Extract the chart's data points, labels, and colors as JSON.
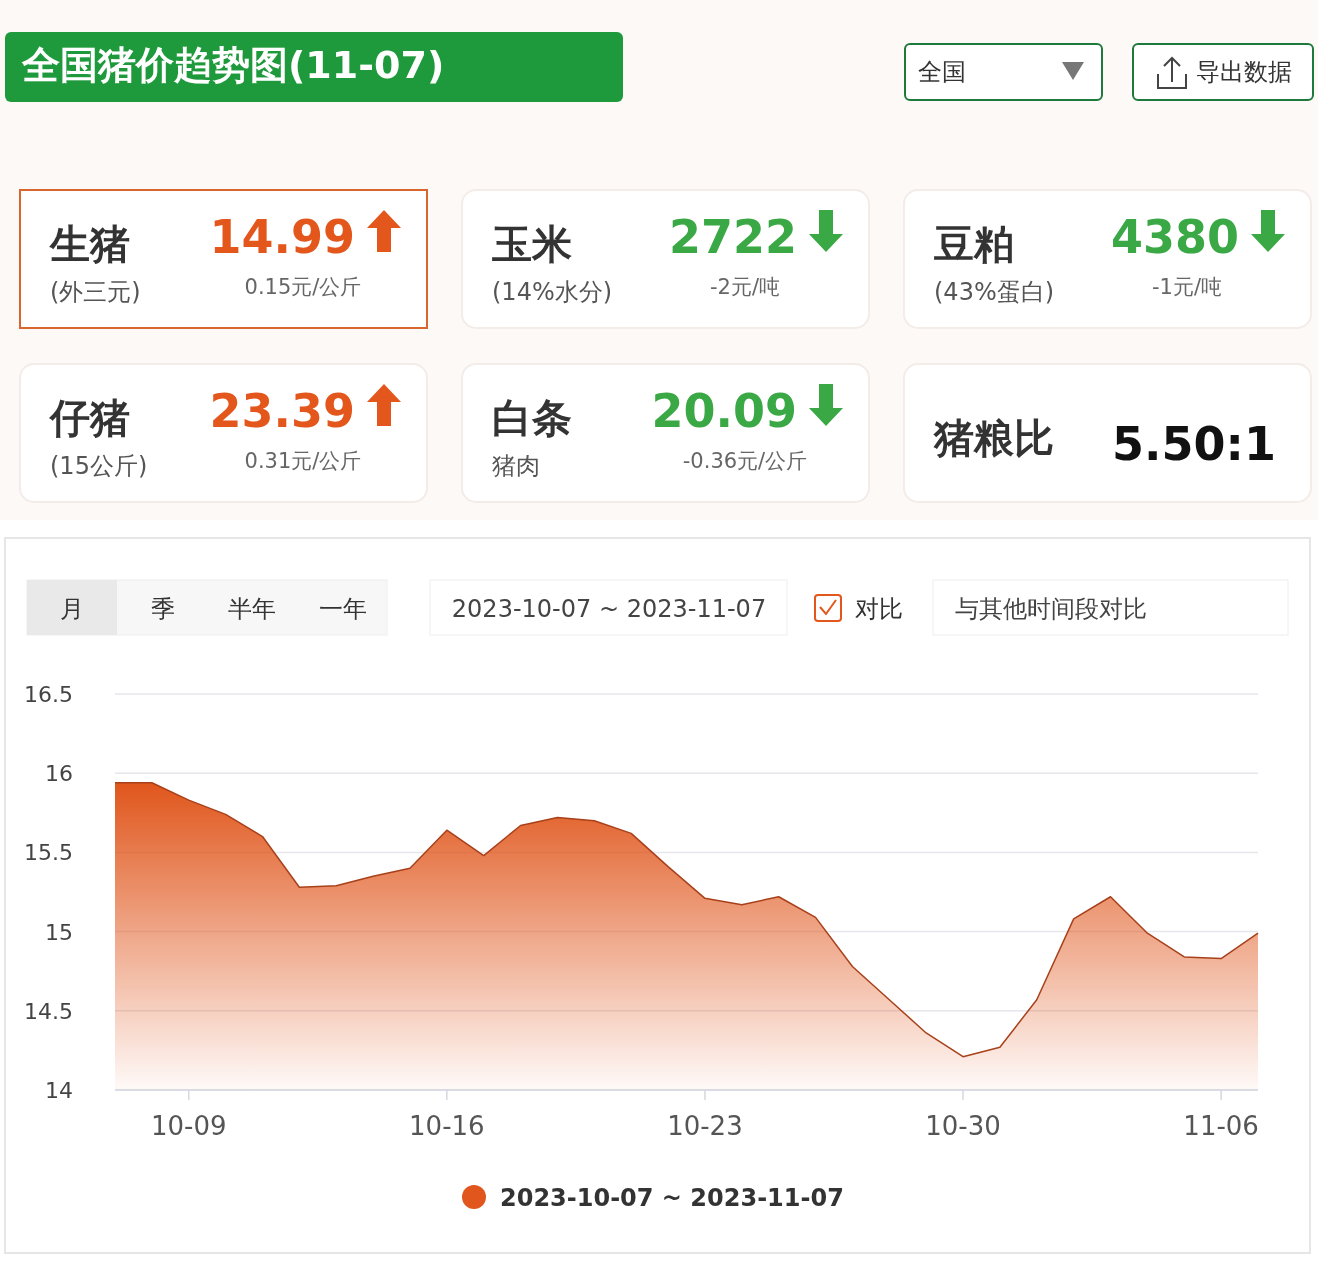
{
  "chart_data": [
    {
      "type": "other",
      "title": "全国猪价趋势图(11-07)",
      "annotations": [
        "全国",
        "导出数据",
        "生猪",
        "(外三元)",
        "14.99",
        "0.15元/公斤",
        "玉米",
        "(14%水分)",
        "2722",
        "-2元/吨",
        "豆粕",
        "(43%蛋白)",
        "4380",
        "-1元/吨",
        "仔猪",
        "(15公斤)",
        "23.39",
        "0.31元/公斤",
        "白条",
        "猪肉",
        "20.09",
        "-0.36元/公斤",
        "猪粮比",
        "5.50:1"
      ]
    },
    {
      "type": "area",
      "annotations": [
        "月",
        "季",
        "半年",
        "一年",
        "2023-10-07 ~ 2023-11-07",
        "对比",
        "与其他时间段对比"
      ],
      "x": [
        "2023-10-07",
        "2023-10-08",
        "2023-10-09",
        "2023-10-10",
        "2023-10-11",
        "2023-10-12",
        "2023-10-13",
        "2023-10-14",
        "2023-10-15",
        "2023-10-16",
        "2023-10-17",
        "2023-10-18",
        "2023-10-19",
        "2023-10-20",
        "2023-10-21",
        "2023-10-22",
        "2023-10-23",
        "2023-10-24",
        "2023-10-25",
        "2023-10-26",
        "2023-10-27",
        "2023-10-28",
        "2023-10-29",
        "2023-10-30",
        "2023-10-31",
        "2023-11-01",
        "2023-11-02",
        "2023-11-03",
        "2023-11-04",
        "2023-11-05",
        "2023-11-06",
        "2023-11-07"
      ],
      "series": [
        {
          "name": "2023-10-07 ~ 2023-11-07",
          "color": "#e0561c",
          "values": [
            15.94,
            15.94,
            15.83,
            15.74,
            15.6,
            15.28,
            15.29,
            15.35,
            15.4,
            15.64,
            15.48,
            15.67,
            15.72,
            15.7,
            15.62,
            15.41,
            15.21,
            15.17,
            15.22,
            15.09,
            14.78,
            14.57,
            14.36,
            14.21,
            14.27,
            14.57,
            15.08,
            15.22,
            14.99,
            14.84,
            14.83,
            14.99
          ]
        }
      ],
      "xlim": [
        "2023-10-07",
        "2023-11-07"
      ],
      "xticks": [
        {
          "value": "2023-10-09",
          "label": "10-09"
        },
        {
          "value": "2023-10-16",
          "label": "10-16"
        },
        {
          "value": "2023-10-23",
          "label": "10-23"
        },
        {
          "value": "2023-10-30",
          "label": "10-30"
        },
        {
          "value": "2023-11-06",
          "label": "11-06"
        }
      ],
      "ylim": [
        14,
        16.5
      ],
      "yticks": [
        14,
        14.5,
        15,
        15.5,
        16,
        16.5
      ],
      "grid": "y",
      "legend": "bottom",
      "marker": "none"
    }
  ]
}
